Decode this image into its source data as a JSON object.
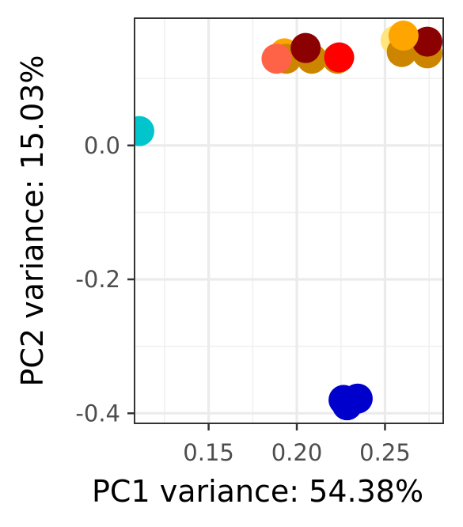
{
  "chart_data": {
    "type": "scatter",
    "xlabel": "PC1 variance: 54.38%",
    "ylabel": "PC2 variance: 15.03%",
    "xlim": [
      0.108,
      0.283
    ],
    "ylim": [
      -0.415,
      0.19
    ],
    "x_major_ticks": [
      0.15,
      0.2,
      0.25
    ],
    "x_major_tick_labels": [
      "0.15",
      "0.20",
      "0.25"
    ],
    "x_minor_ticks": [
      0.125,
      0.175,
      0.225,
      0.275
    ],
    "y_major_ticks": [
      0.0,
      -0.2,
      -0.4
    ],
    "y_major_tick_labels": [
      "0.0",
      "-0.2",
      "-0.4"
    ],
    "y_minor_ticks": [
      0.1,
      -0.1,
      -0.3
    ],
    "grid": true,
    "legend": "none",
    "points": [
      {
        "x": 0.1107,
        "y": 0.0214,
        "color": "#00c5cd"
      },
      {
        "x": 0.193,
        "y": 0.1375,
        "color": "#ffa500"
      },
      {
        "x": 0.194,
        "y": 0.1295,
        "color": "#cd8500"
      },
      {
        "x": 0.1885,
        "y": 0.1295,
        "color": "#ff6347"
      },
      {
        "x": 0.2085,
        "y": 0.1295,
        "color": "#cd8500"
      },
      {
        "x": 0.223,
        "y": 0.1295,
        "color": "#cd8500"
      },
      {
        "x": 0.205,
        "y": 0.1455,
        "color": "#8b0000"
      },
      {
        "x": 0.224,
        "y": 0.1315,
        "color": "#ff0000"
      },
      {
        "x": 0.256,
        "y": 0.157,
        "color": "#ffe57f"
      },
      {
        "x": 0.2595,
        "y": 0.1395,
        "color": "#cd8500"
      },
      {
        "x": 0.274,
        "y": 0.1375,
        "color": "#cd8500"
      },
      {
        "x": 0.274,
        "y": 0.155,
        "color": "#8b0000"
      },
      {
        "x": 0.2605,
        "y": 0.164,
        "color": "#ffa500"
      },
      {
        "x": 0.2265,
        "y": -0.38,
        "color": "#0000cd"
      },
      {
        "x": 0.2345,
        "y": -0.378,
        "color": "#0000cd"
      },
      {
        "x": 0.2285,
        "y": -0.388,
        "color": "#0000cd"
      }
    ]
  }
}
